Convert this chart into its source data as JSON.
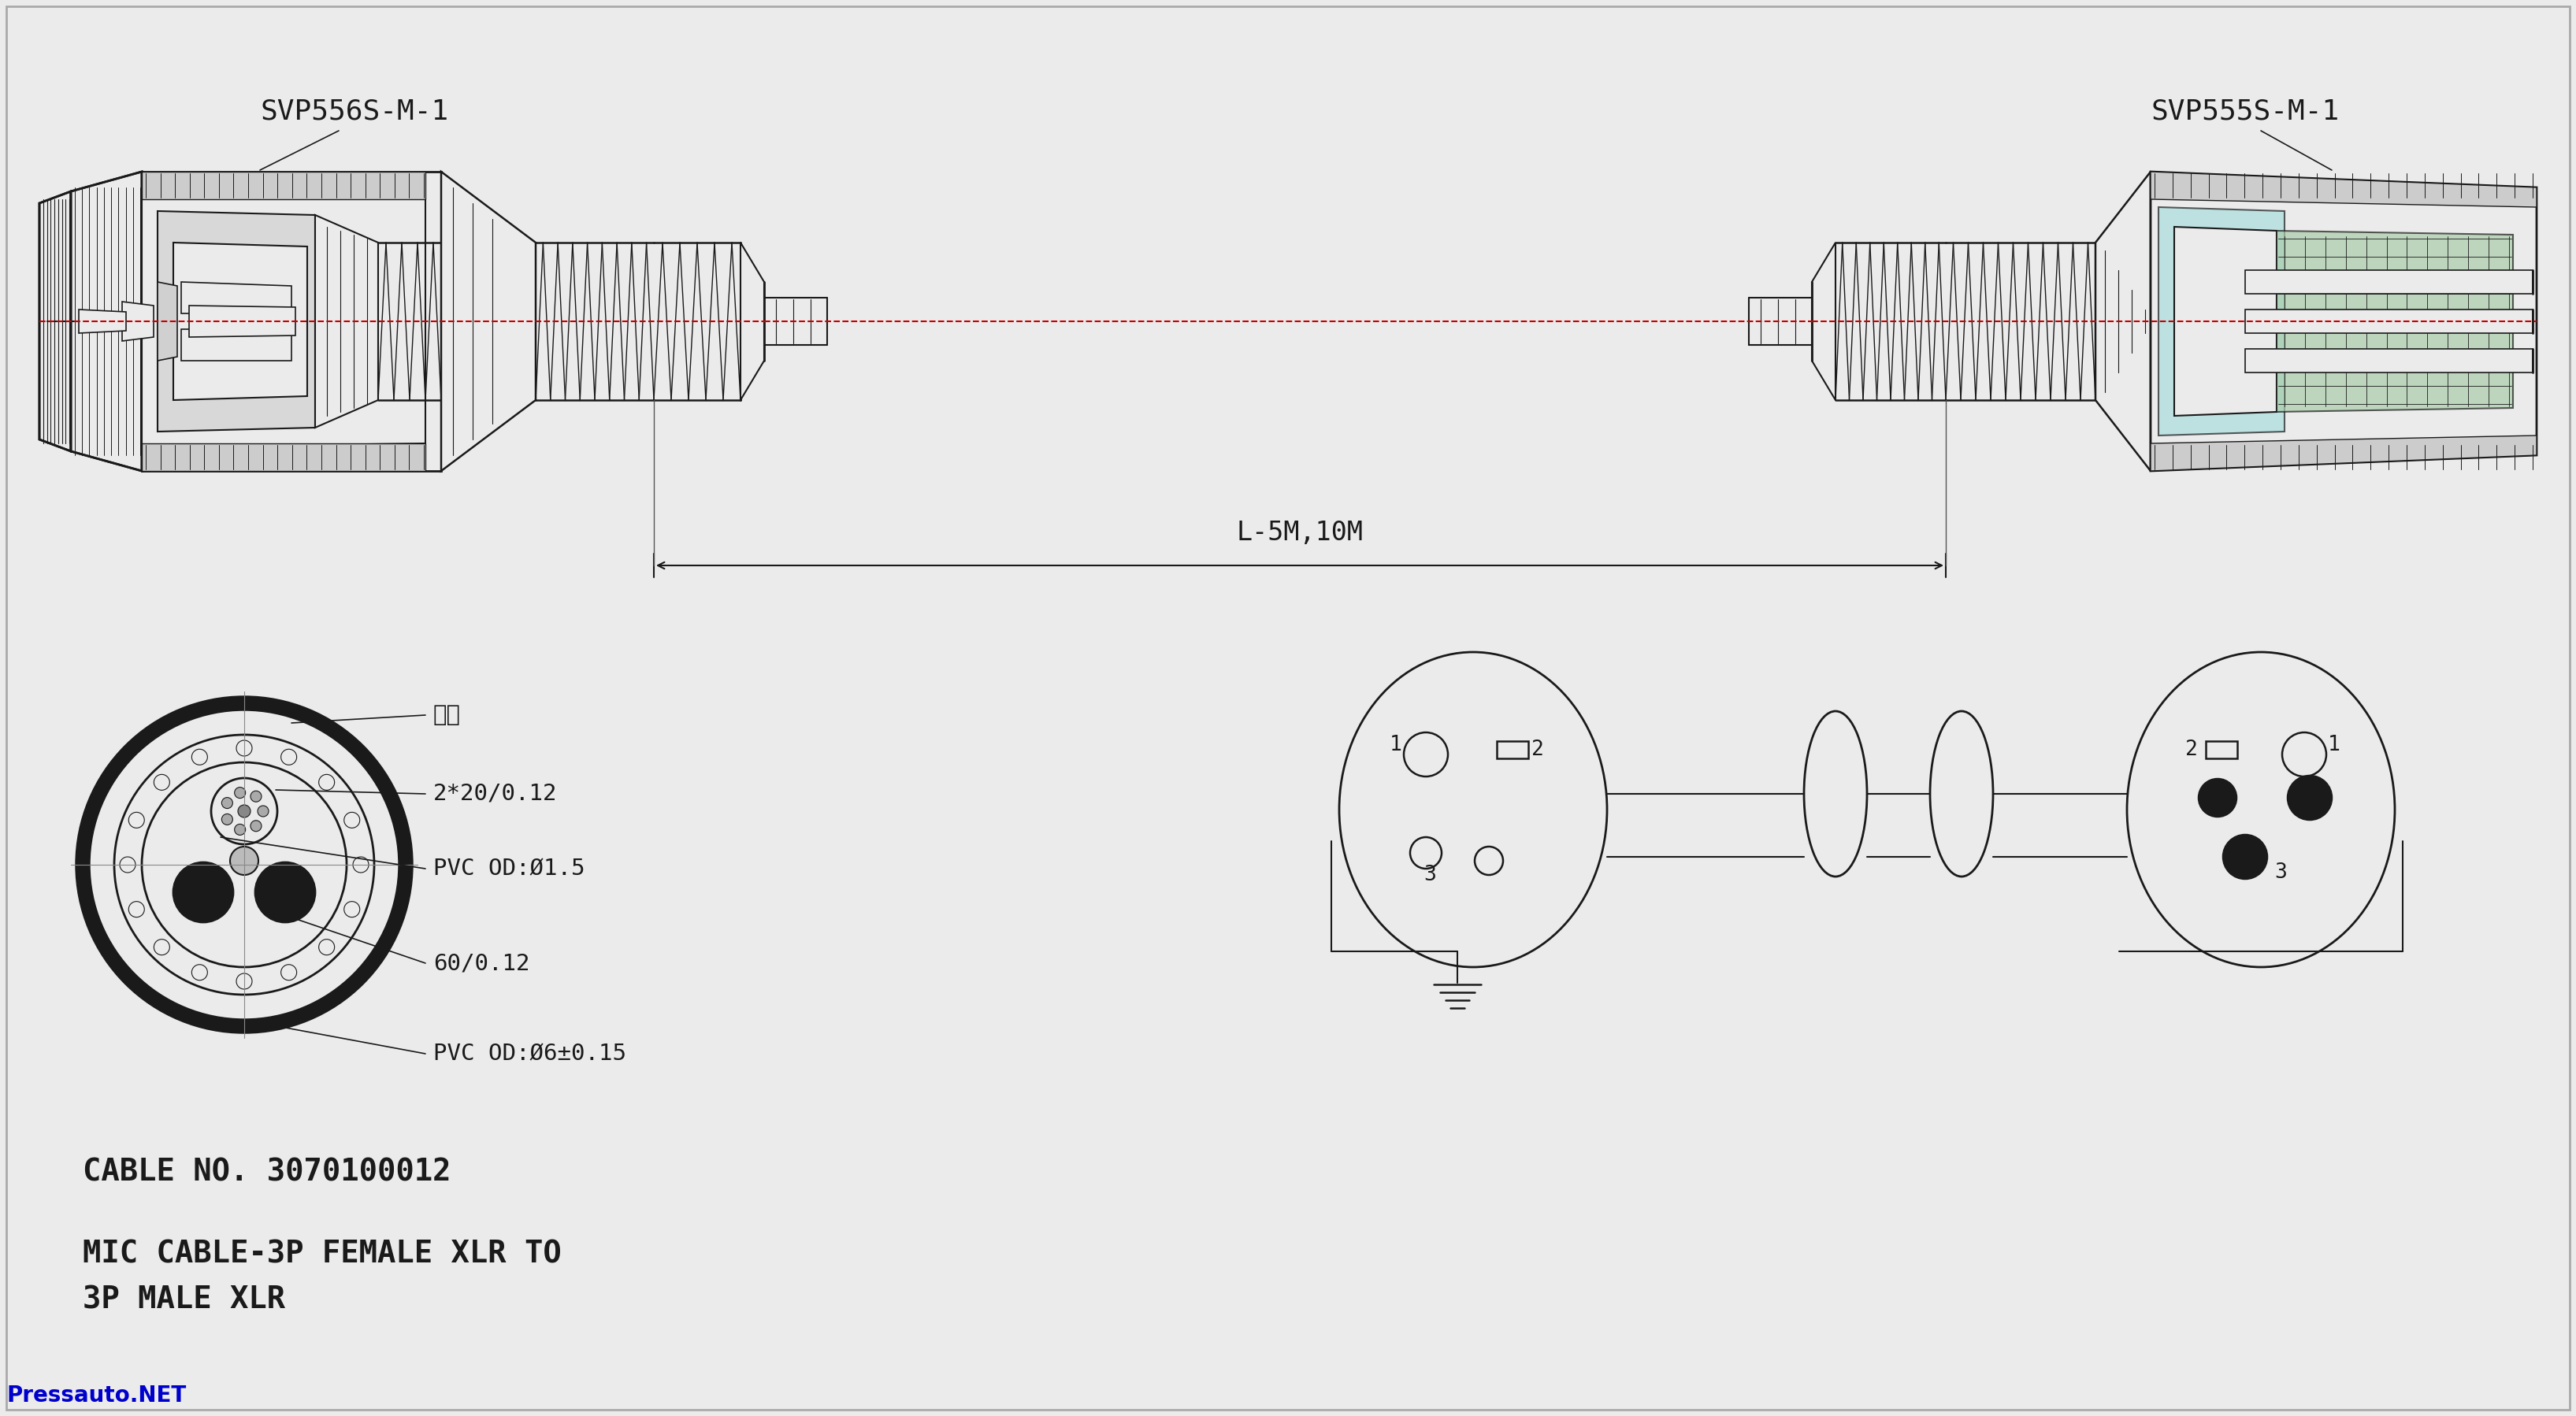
{
  "bg_color": "#ebebeb",
  "line_color": "#1a1a1a",
  "title_left": "SVP556S-M-1",
  "title_right": "SVP555S-M-1",
  "label_cable_no": "CABLE NO. 3070100012",
  "label_desc_1": "MIC CABLE-3P FEMALE XLR TO",
  "label_desc_2": "3P MALE XLR",
  "label_dimension": "L-5M,10M",
  "label_mianxian": "棉线",
  "label_2x20": "2*20/0.12",
  "label_pvc15": "PVC OD:Ø1.5",
  "label_60": "60/0.12",
  "label_pvc6": "PVC OD:Ø6±0.15",
  "watermark": "Pressauto.NET",
  "red_line_color": "#cc0000",
  "cyan_color": "#aadddd",
  "green_color": "#aaccaa",
  "gray_light": "#cccccc",
  "gray_med": "#999999",
  "gray_dark": "#555555"
}
